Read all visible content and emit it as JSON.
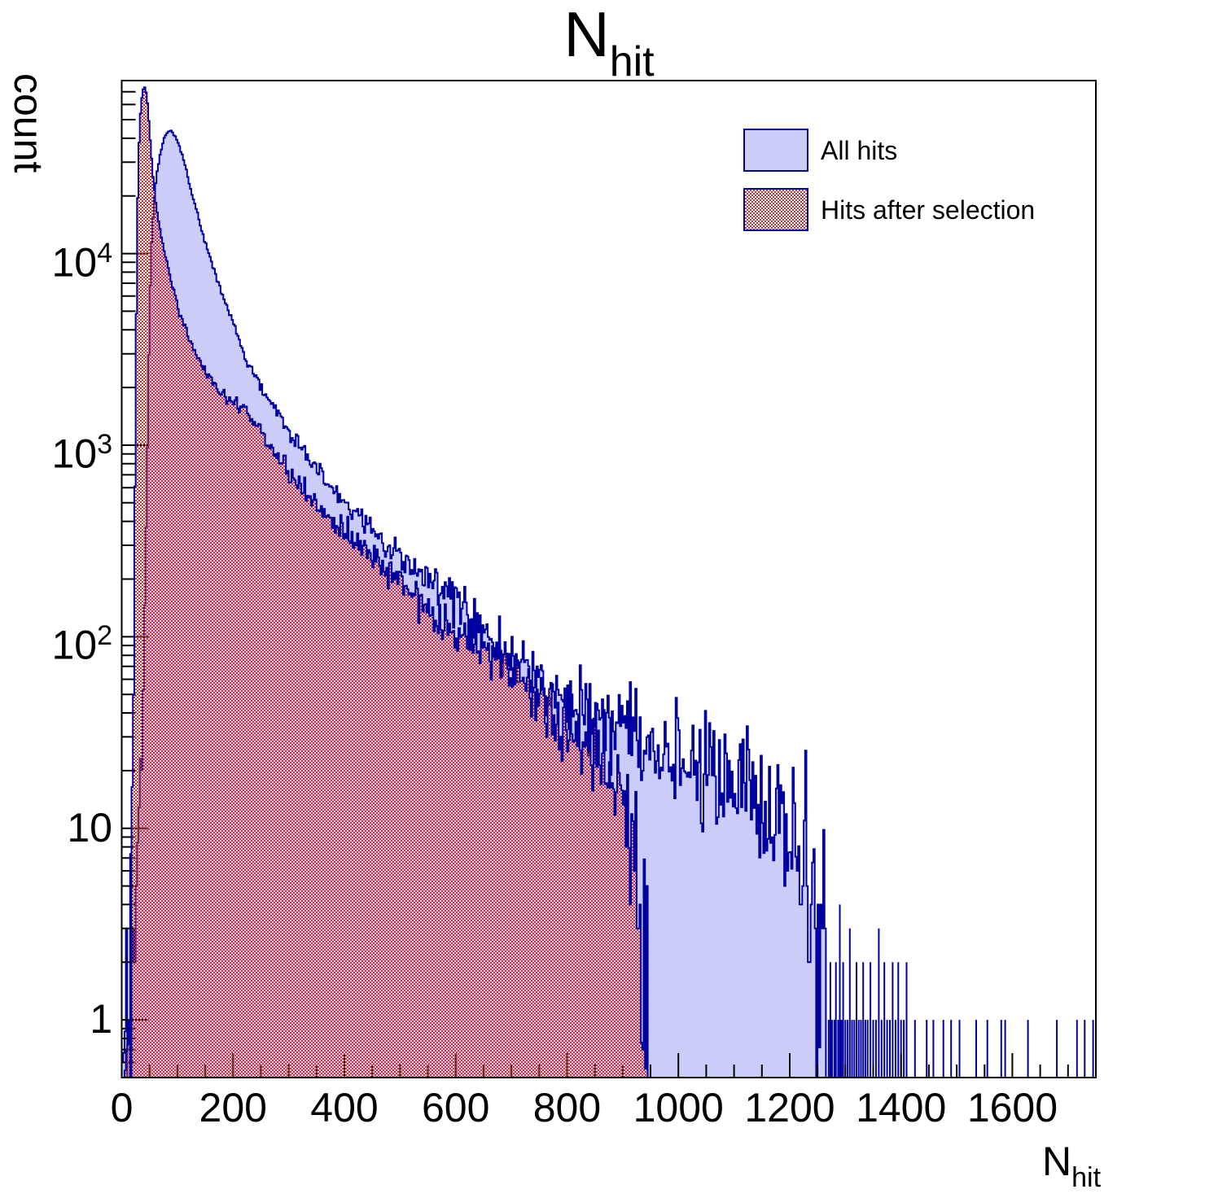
{
  "title": {
    "main": "N",
    "sub": "hit"
  },
  "y_axis": {
    "title": "count",
    "scale": "log"
  },
  "x_axis": {
    "title_main": "N",
    "title_sub": "hit"
  },
  "legend": {
    "items": [
      {
        "label": "All hits",
        "swatch": "solid"
      },
      {
        "label": "Hits after selection",
        "swatch": "hatch"
      }
    ]
  },
  "colors": {
    "background": "#ffffff",
    "frame": "#000000",
    "hist_outline": "#0000a0",
    "all_hits_fill": "#ccccf8",
    "selection_hatch": "#cc3333",
    "text": "#000000"
  },
  "chart_data": {
    "type": "area",
    "subtype": "overlaid step histograms, logarithmic y axis",
    "title": "N_hit",
    "xlabel": "N_hit",
    "ylabel": "count",
    "xlim": [
      0,
      1750
    ],
    "ylim": [
      0.5,
      80000
    ],
    "x_major_step": 200,
    "x_minor_step": 50,
    "x_tick_labels": [
      "0",
      "200",
      "400",
      "600",
      "800",
      "1000",
      "1200",
      "1400",
      "1600"
    ],
    "y_tick_labels": [
      {
        "value": 1,
        "base": "1",
        "exp": ""
      },
      {
        "value": 10,
        "base": "10",
        "exp": ""
      },
      {
        "value": 100,
        "base": "10",
        "exp": "2"
      },
      {
        "value": 1000,
        "base": "10",
        "exp": "3"
      },
      {
        "value": 10000,
        "base": "10",
        "exp": "4"
      }
    ],
    "grid": false,
    "legend_position": "top-right",
    "series": [
      {
        "name": "All hits",
        "style": "filled-light-blue, dark blue outline",
        "peak": {
          "x": 86,
          "count": 43500
        },
        "anchors": [
          [
            0,
            0.5
          ],
          [
            6,
            0.8
          ],
          [
            12,
            1.5
          ],
          [
            18,
            2
          ],
          [
            24,
            3
          ],
          [
            30,
            6
          ],
          [
            36,
            25
          ],
          [
            42,
            150
          ],
          [
            46,
            900
          ],
          [
            50,
            5000
          ],
          [
            54,
            12000
          ],
          [
            58,
            19000
          ],
          [
            63,
            26000
          ],
          [
            68,
            32000
          ],
          [
            73,
            37000
          ],
          [
            78,
            41000
          ],
          [
            83,
            43200
          ],
          [
            88,
            43500
          ],
          [
            93,
            42200
          ],
          [
            98,
            39800
          ],
          [
            104,
            36200
          ],
          [
            110,
            31800
          ],
          [
            118,
            25800
          ],
          [
            126,
            20800
          ],
          [
            134,
            17000
          ],
          [
            142,
            14000
          ],
          [
            150,
            11500
          ],
          [
            160,
            9200
          ],
          [
            170,
            7500
          ],
          [
            180,
            6150
          ],
          [
            190,
            5150
          ],
          [
            200,
            4350
          ],
          [
            210,
            3600
          ],
          [
            221,
            2900
          ],
          [
            235,
            2480
          ],
          [
            250,
            2030
          ],
          [
            265,
            1700
          ],
          [
            280,
            1450
          ],
          [
            295,
            1240
          ],
          [
            310,
            1080
          ],
          [
            325,
            945
          ],
          [
            340,
            825
          ],
          [
            355,
            730
          ],
          [
            370,
            645
          ],
          [
            385,
            570
          ],
          [
            400,
            510
          ],
          [
            420,
            445
          ],
          [
            440,
            385
          ],
          [
            460,
            340
          ],
          [
            480,
            300
          ],
          [
            500,
            263
          ],
          [
            513,
            246
          ],
          [
            530,
            225
          ],
          [
            550,
            200
          ],
          [
            570,
            178
          ],
          [
            590,
            158
          ],
          [
            610,
            140
          ],
          [
            630,
            124
          ],
          [
            650,
            110
          ],
          [
            670,
            96
          ],
          [
            690,
            85
          ],
          [
            710,
            75
          ],
          [
            734,
            66
          ],
          [
            760,
            57
          ],
          [
            790,
            49
          ],
          [
            820,
            43
          ],
          [
            850,
            39
          ],
          [
            880,
            35
          ],
          [
            910,
            32
          ],
          [
            940,
            29
          ],
          [
            970,
            26
          ],
          [
            1000,
            24
          ],
          [
            1030,
            22
          ],
          [
            1060,
            20
          ],
          [
            1090,
            18
          ],
          [
            1120,
            16
          ],
          [
            1150,
            14
          ],
          [
            1180,
            12
          ],
          [
            1200,
            10
          ],
          [
            1215,
            8
          ],
          [
            1228,
            6
          ],
          [
            1240,
            4.5
          ],
          [
            1250,
            3
          ],
          [
            1258,
            2
          ],
          [
            1265,
            1.2
          ]
        ],
        "tail_spikes": [
          [
            1270,
            1
          ],
          [
            1273,
            2
          ],
          [
            1276,
            1
          ],
          [
            1280,
            1
          ],
          [
            1283,
            2
          ],
          [
            1287,
            1
          ],
          [
            1290,
            4
          ],
          [
            1293,
            1
          ],
          [
            1296,
            2
          ],
          [
            1300,
            1
          ],
          [
            1304,
            1
          ],
          [
            1308,
            3
          ],
          [
            1312,
            1
          ],
          [
            1316,
            1
          ],
          [
            1320,
            2
          ],
          [
            1324,
            1
          ],
          [
            1328,
            1
          ],
          [
            1332,
            2
          ],
          [
            1336,
            1
          ],
          [
            1340,
            1
          ],
          [
            1345,
            2
          ],
          [
            1350,
            1
          ],
          [
            1355,
            1
          ],
          [
            1360,
            3
          ],
          [
            1365,
            1
          ],
          [
            1370,
            2
          ],
          [
            1375,
            1
          ],
          [
            1380,
            1
          ],
          [
            1385,
            2
          ],
          [
            1390,
            1
          ],
          [
            1395,
            2
          ],
          [
            1400,
            1
          ],
          [
            1405,
            1
          ],
          [
            1410,
            2
          ],
          [
            1425,
            1
          ],
          [
            1446,
            1
          ],
          [
            1458,
            1
          ],
          [
            1476,
            1
          ],
          [
            1490,
            1
          ],
          [
            1505,
            1
          ],
          [
            1535,
            1
          ],
          [
            1555,
            1
          ],
          [
            1580,
            1
          ],
          [
            1587,
            1
          ],
          [
            1628,
            1
          ],
          [
            1680,
            1
          ],
          [
            1716,
            1
          ],
          [
            1730,
            1
          ],
          [
            1745,
            1
          ]
        ]
      },
      {
        "name": "Hits after selection",
        "style": "red checkerboard hatch over transparent, dark blue outline",
        "peak": {
          "x": 41,
          "count": 74000
        },
        "anchors": [
          [
            0,
            0.55
          ],
          [
            8,
            0.6
          ],
          [
            14,
            0.9
          ],
          [
            18,
            3
          ],
          [
            20,
            15
          ],
          [
            23,
            300
          ],
          [
            26,
            4000
          ],
          [
            29,
            22000
          ],
          [
            32,
            45000
          ],
          [
            35,
            62000
          ],
          [
            38,
            71000
          ],
          [
            41,
            74000
          ],
          [
            44,
            70000
          ],
          [
            47,
            58000
          ],
          [
            50,
            44000
          ],
          [
            53,
            33000
          ],
          [
            56,
            25500
          ],
          [
            60,
            19500
          ],
          [
            65,
            15500
          ],
          [
            70,
            12800
          ],
          [
            75,
            10800
          ],
          [
            80,
            9300
          ],
          [
            87,
            7600
          ],
          [
            94,
            6300
          ],
          [
            100,
            5300
          ],
          [
            108,
            4500
          ],
          [
            116,
            3900
          ],
          [
            125,
            3400
          ],
          [
            135,
            2950
          ],
          [
            145,
            2600
          ],
          [
            155,
            2320
          ],
          [
            167,
            2050
          ],
          [
            180,
            1830
          ],
          [
            195,
            1680
          ],
          [
            208,
            1620
          ],
          [
            221,
            1570
          ],
          [
            240,
            1300
          ],
          [
            260,
            1060
          ],
          [
            280,
            880
          ],
          [
            300,
            730
          ],
          [
            320,
            620
          ],
          [
            345,
            510
          ],
          [
            370,
            425
          ],
          [
            400,
            350
          ],
          [
            430,
            293
          ],
          [
            460,
            243
          ],
          [
            490,
            203
          ],
          [
            513,
            172
          ],
          [
            540,
            150
          ],
          [
            570,
            128
          ],
          [
            600,
            111
          ],
          [
            630,
            96
          ],
          [
            660,
            83
          ],
          [
            690,
            71
          ],
          [
            715,
            60
          ],
          [
            734,
            52
          ],
          [
            760,
            44
          ],
          [
            790,
            37
          ],
          [
            820,
            31
          ],
          [
            850,
            26
          ],
          [
            875,
            22
          ],
          [
            895,
            18
          ],
          [
            910,
            14
          ],
          [
            920,
            10
          ],
          [
            928,
            6
          ],
          [
            935,
            3.5
          ],
          [
            941,
            2
          ],
          [
            946,
            1.2
          ]
        ],
        "tail_spikes": []
      }
    ]
  }
}
